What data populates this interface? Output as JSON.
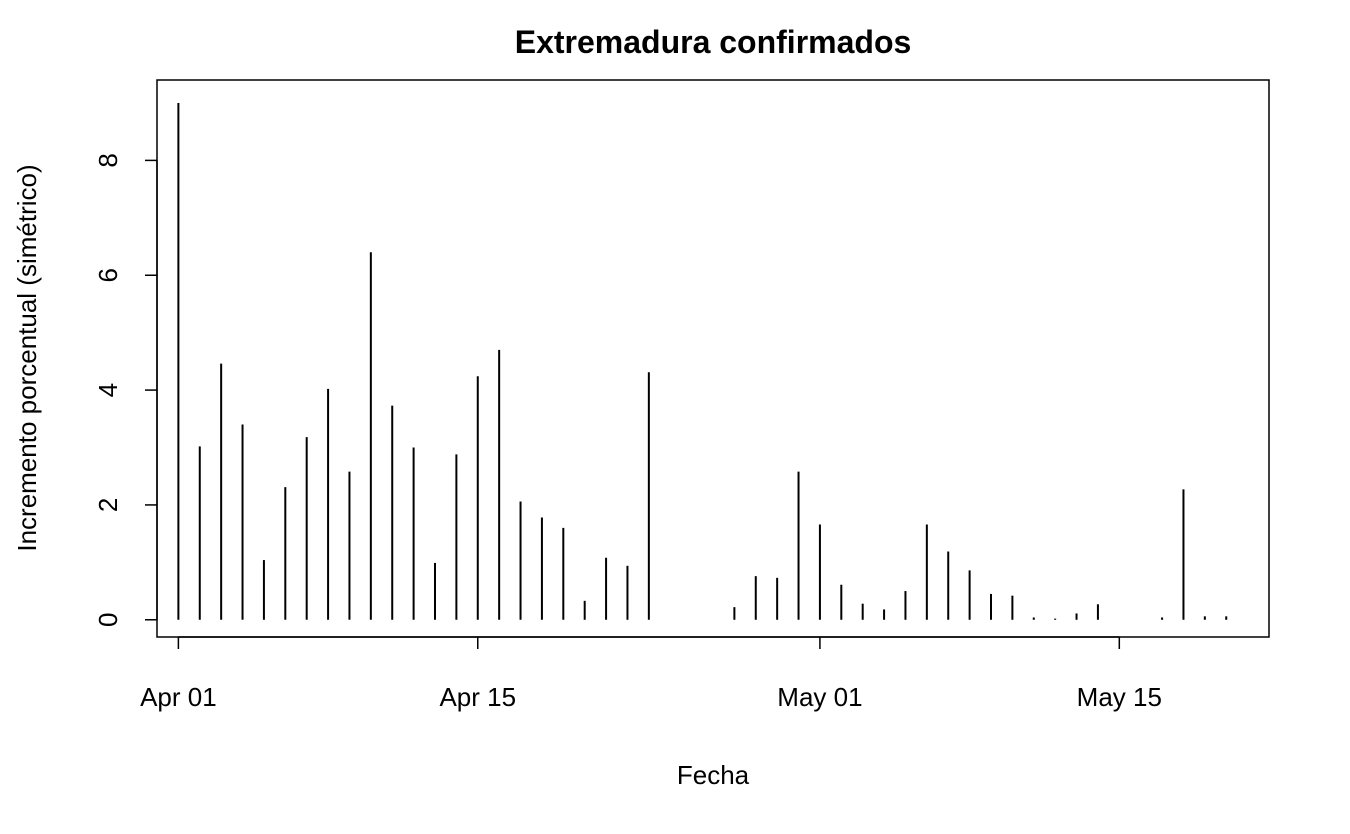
{
  "chart_data": {
    "type": "bar",
    "style": "vertical-lines",
    "title": "Extremadura confirmados",
    "xlabel": "Fecha",
    "ylabel": "Incremento porcentual (simétrico)",
    "xlim": [
      "2020-03-31",
      "2020-05-22"
    ],
    "ylim": [
      -0.3,
      9.4
    ],
    "yticks": [
      0,
      2,
      4,
      6,
      8
    ],
    "xticks": [
      {
        "date": "2020-04-01",
        "label": "Apr 01"
      },
      {
        "date": "2020-04-15",
        "label": "Apr 15"
      },
      {
        "date": "2020-05-01",
        "label": "May 01"
      },
      {
        "date": "2020-05-15",
        "label": "May 15"
      }
    ],
    "grid": false,
    "legend": "none",
    "color": "#000000",
    "x": [
      "2020-04-01",
      "2020-04-02",
      "2020-04-03",
      "2020-04-04",
      "2020-04-05",
      "2020-04-06",
      "2020-04-07",
      "2020-04-08",
      "2020-04-09",
      "2020-04-10",
      "2020-04-11",
      "2020-04-12",
      "2020-04-13",
      "2020-04-14",
      "2020-04-15",
      "2020-04-16",
      "2020-04-17",
      "2020-04-18",
      "2020-04-19",
      "2020-04-20",
      "2020-04-21",
      "2020-04-22",
      "2020-04-23",
      "2020-04-24",
      "2020-04-25",
      "2020-04-26",
      "2020-04-27",
      "2020-04-28",
      "2020-04-29",
      "2020-04-30",
      "2020-05-01",
      "2020-05-02",
      "2020-05-03",
      "2020-05-04",
      "2020-05-05",
      "2020-05-06",
      "2020-05-07",
      "2020-05-08",
      "2020-05-09",
      "2020-05-10",
      "2020-05-11",
      "2020-05-12",
      "2020-05-13",
      "2020-05-14",
      "2020-05-15",
      "2020-05-16",
      "2020-05-17",
      "2020-05-18",
      "2020-05-19",
      "2020-05-20",
      "2020-05-21"
    ],
    "values": [
      9.0,
      3.02,
      4.46,
      3.4,
      1.04,
      2.31,
      3.18,
      4.02,
      2.58,
      6.4,
      3.73,
      3.0,
      0.99,
      2.88,
      4.24,
      4.7,
      2.06,
      1.78,
      1.6,
      0.33,
      1.08,
      0.94,
      4.31,
      0,
      0,
      0,
      0.22,
      0.76,
      0.73,
      2.58,
      1.66,
      0.61,
      0.28,
      0.18,
      0.5,
      1.66,
      1.19,
      0.86,
      0.45,
      0.42,
      0.04,
      0.02,
      0.11,
      0.27,
      0,
      0,
      0.04,
      2.27,
      0.06,
      0.06,
      0
    ]
  }
}
